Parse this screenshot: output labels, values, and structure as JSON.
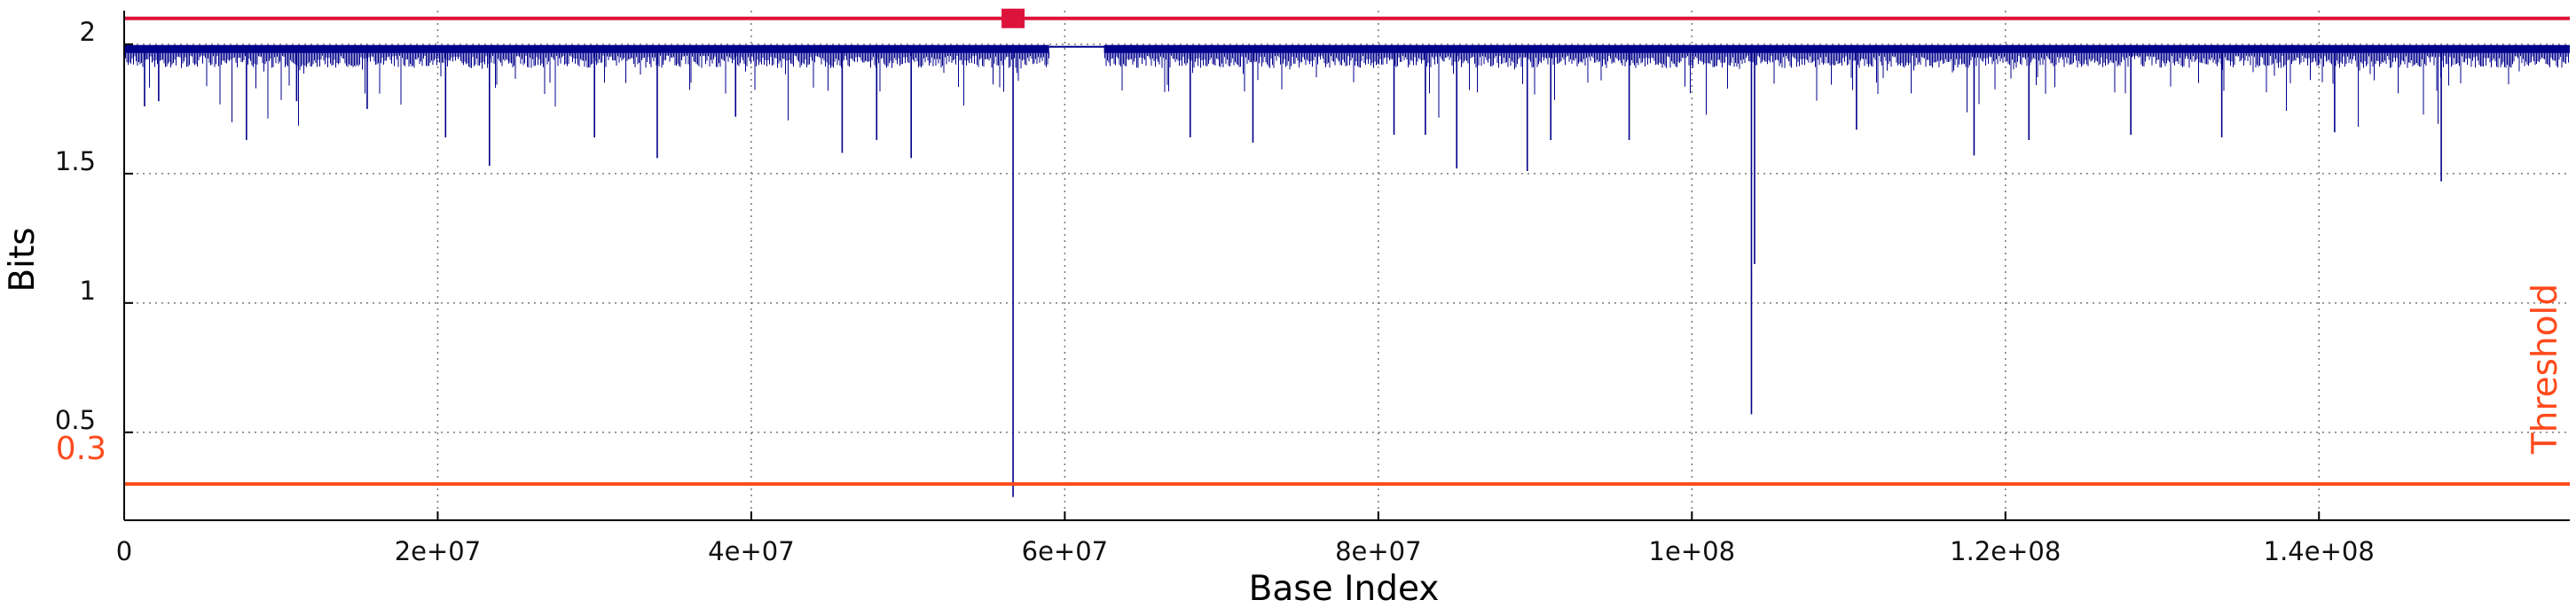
{
  "chart_data": {
    "type": "line",
    "title": "",
    "xlabel": "Base Index",
    "ylabel": "Bits",
    "xlim": [
      0,
      156000000
    ],
    "ylim": [
      0.16,
      2.13
    ],
    "x_ticks": [
      0,
      20000000,
      40000000,
      60000000,
      80000000,
      100000000,
      120000000,
      140000000
    ],
    "x_tick_labels": [
      "0",
      "2e+07",
      "4e+07",
      "6e+07",
      "8e+07",
      "1e+08",
      "1.2e+08",
      "1.4e+08"
    ],
    "y_ticks": [
      0.5,
      1,
      1.5,
      2
    ],
    "y_tick_labels": [
      "0.5",
      "1",
      "1.5",
      "2"
    ],
    "grid": true,
    "colors": {
      "series": "#00008b",
      "threshold": "#ff4a1c",
      "top_line": "#dc143c",
      "marker": "#dc143c"
    },
    "series": [
      {
        "name": "",
        "baseline": 1.98,
        "gap": [
          59000000,
          62500000
        ],
        "dips": [
          {
            "x": 1300000,
            "y": 1.76
          },
          {
            "x": 2200000,
            "y": 1.78
          },
          {
            "x": 7800000,
            "y": 1.63
          },
          {
            "x": 11000000,
            "y": 1.78
          },
          {
            "x": 15500000,
            "y": 1.75
          },
          {
            "x": 20500000,
            "y": 1.64
          },
          {
            "x": 23300000,
            "y": 1.53
          },
          {
            "x": 30000000,
            "y": 1.64
          },
          {
            "x": 34000000,
            "y": 1.56
          },
          {
            "x": 39000000,
            "y": 1.72
          },
          {
            "x": 45800000,
            "y": 1.58
          },
          {
            "x": 48000000,
            "y": 1.63
          },
          {
            "x": 50200000,
            "y": 1.56
          },
          {
            "x": 56700000,
            "y": 0.25
          },
          {
            "x": 68000000,
            "y": 1.64
          },
          {
            "x": 72000000,
            "y": 1.62
          },
          {
            "x": 81000000,
            "y": 1.65
          },
          {
            "x": 83000000,
            "y": 1.65
          },
          {
            "x": 85000000,
            "y": 1.52
          },
          {
            "x": 89500000,
            "y": 1.51
          },
          {
            "x": 91000000,
            "y": 1.63
          },
          {
            "x": 96000000,
            "y": 1.63
          },
          {
            "x": 103800000,
            "y": 0.57
          },
          {
            "x": 104000000,
            "y": 1.15
          },
          {
            "x": 110500000,
            "y": 1.67
          },
          {
            "x": 118000000,
            "y": 1.57
          },
          {
            "x": 121500000,
            "y": 1.63
          },
          {
            "x": 128000000,
            "y": 1.65
          },
          {
            "x": 133800000,
            "y": 1.64
          },
          {
            "x": 141000000,
            "y": 1.66
          },
          {
            "x": 147800000,
            "y": 1.47
          }
        ]
      }
    ],
    "threshold": {
      "value": 0.3,
      "label": "Threshold",
      "value_label": "0.3"
    },
    "top_line": {
      "value": 2.1
    },
    "marker": {
      "x": 56700000,
      "y": 2.1
    }
  }
}
